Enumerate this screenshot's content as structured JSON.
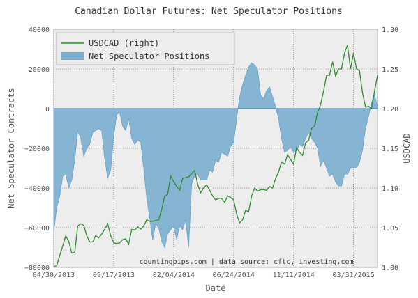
{
  "chart_data": {
    "type": "area+line",
    "title": "Canadian Dollar Futures: Net Speculator Positions",
    "xlabel": "Date",
    "ylabel_left": "Net Speculator Contracts",
    "ylabel_right": "USDCAD",
    "credit": "countingpips.com | data source: cftc, investing.com",
    "grid": true,
    "legend_position": "top-left",
    "x_range": [
      "2013-04-30",
      "2015-05-26"
    ],
    "x_ticks": [
      "04/30/2013",
      "09/17/2013",
      "02/04/2014",
      "06/24/2014",
      "11/11/2014",
      "03/31/2015"
    ],
    "y_left_range": [
      -80000,
      40000
    ],
    "y_left_ticks": [
      -80000,
      -60000,
      -40000,
      -20000,
      0,
      20000,
      40000
    ],
    "y_left_tick_labels": [
      "−80000",
      "−60000",
      "−40000",
      "−20000",
      "0",
      "20000",
      "40000"
    ],
    "y_right_range": [
      1.0,
      1.3
    ],
    "y_right_ticks": [
      1.0,
      1.05,
      1.1,
      1.15,
      1.2,
      1.25,
      1.3
    ],
    "y_right_tick_labels": [
      "1.00",
      "1.05",
      "1.10",
      "1.15",
      "1.20",
      "1.25",
      "1.30"
    ],
    "series": [
      {
        "name": "Net_Speculator_Positions",
        "kind": "area",
        "color": "#7aaed0",
        "points": [
          [
            "2013-04-30",
            -62000
          ],
          [
            "2013-05-07",
            -50000
          ],
          [
            "2013-05-14",
            -44000
          ],
          [
            "2013-05-21",
            -34000
          ],
          [
            "2013-05-28",
            -33000
          ],
          [
            "2013-06-04",
            -40000
          ],
          [
            "2013-06-11",
            -36000
          ],
          [
            "2013-06-18",
            -26000
          ],
          [
            "2013-06-25",
            -11000
          ],
          [
            "2013-07-02",
            -15000
          ],
          [
            "2013-07-09",
            -24000
          ],
          [
            "2013-07-16",
            -20000
          ],
          [
            "2013-07-23",
            -18000
          ],
          [
            "2013-07-30",
            -12000
          ],
          [
            "2013-08-06",
            -11000
          ],
          [
            "2013-08-13",
            -10000
          ],
          [
            "2013-08-20",
            -11000
          ],
          [
            "2013-08-27",
            -25000
          ],
          [
            "2013-09-03",
            -35000
          ],
          [
            "2013-09-10",
            -31000
          ],
          [
            "2013-09-17",
            -14000
          ],
          [
            "2013-09-24",
            -3000
          ],
          [
            "2013-10-01",
            -2000
          ],
          [
            "2013-10-08",
            -9000
          ],
          [
            "2013-10-15",
            -11000
          ],
          [
            "2013-10-22",
            -5000
          ],
          [
            "2013-10-29",
            -15000
          ],
          [
            "2013-11-05",
            -18000
          ],
          [
            "2013-11-12",
            -16000
          ],
          [
            "2013-11-19",
            -17000
          ],
          [
            "2013-11-26",
            -30000
          ],
          [
            "2013-12-03",
            -45000
          ],
          [
            "2013-12-10",
            -55000
          ],
          [
            "2013-12-17",
            -66000
          ],
          [
            "2013-12-24",
            -58000
          ],
          [
            "2013-12-31",
            -60000
          ],
          [
            "2014-01-07",
            -67000
          ],
          [
            "2014-01-14",
            -70000
          ],
          [
            "2014-01-21",
            -63000
          ],
          [
            "2014-01-28",
            -61000
          ],
          [
            "2014-02-04",
            -59000
          ],
          [
            "2014-02-11",
            -66000
          ],
          [
            "2014-02-18",
            -59000
          ],
          [
            "2014-02-25",
            -61000
          ],
          [
            "2014-03-04",
            -56000
          ],
          [
            "2014-03-11",
            -70000
          ],
          [
            "2014-03-18",
            -38000
          ],
          [
            "2014-03-25",
            -34000
          ],
          [
            "2014-04-01",
            -33000
          ],
          [
            "2014-04-08",
            -36000
          ],
          [
            "2014-04-15",
            -36000
          ],
          [
            "2014-04-22",
            -36000
          ],
          [
            "2014-04-29",
            -31000
          ],
          [
            "2014-05-06",
            -32000
          ],
          [
            "2014-05-13",
            -26000
          ],
          [
            "2014-05-20",
            -27000
          ],
          [
            "2014-05-27",
            -22000
          ],
          [
            "2014-06-03",
            -23000
          ],
          [
            "2014-06-10",
            -24000
          ],
          [
            "2014-06-17",
            -19000
          ],
          [
            "2014-06-24",
            -17000
          ],
          [
            "2014-07-01",
            -5000
          ],
          [
            "2014-07-08",
            6000
          ],
          [
            "2014-07-15",
            12000
          ],
          [
            "2014-07-22",
            17000
          ],
          [
            "2014-07-29",
            21000
          ],
          [
            "2014-08-05",
            23000
          ],
          [
            "2014-08-12",
            22000
          ],
          [
            "2014-08-19",
            20000
          ],
          [
            "2014-08-26",
            7000
          ],
          [
            "2014-09-02",
            5000
          ],
          [
            "2014-09-09",
            9000
          ],
          [
            "2014-09-16",
            11000
          ],
          [
            "2014-09-23",
            6000
          ],
          [
            "2014-09-30",
            1000
          ],
          [
            "2014-10-07",
            -5000
          ],
          [
            "2014-10-14",
            -15000
          ],
          [
            "2014-10-21",
            -22000
          ],
          [
            "2014-10-28",
            -21000
          ],
          [
            "2014-11-04",
            -19000
          ],
          [
            "2014-11-11",
            -22000
          ],
          [
            "2014-11-18",
            -21000
          ],
          [
            "2014-11-25",
            -18000
          ],
          [
            "2014-12-02",
            -19000
          ],
          [
            "2014-12-09",
            -15000
          ],
          [
            "2014-12-16",
            -12000
          ],
          [
            "2014-12-23",
            -15000
          ],
          [
            "2014-12-30",
            -17000
          ],
          [
            "2015-01-06",
            -20000
          ],
          [
            "2015-01-13",
            -29000
          ],
          [
            "2015-01-20",
            -26000
          ],
          [
            "2015-01-27",
            -30000
          ],
          [
            "2015-02-03",
            -34000
          ],
          [
            "2015-02-10",
            -33000
          ],
          [
            "2015-02-17",
            -37000
          ],
          [
            "2015-02-24",
            -39000
          ],
          [
            "2015-03-03",
            -39000
          ],
          [
            "2015-03-10",
            -33000
          ],
          [
            "2015-03-17",
            -33000
          ],
          [
            "2015-03-24",
            -30000
          ],
          [
            "2015-03-31",
            -30000
          ],
          [
            "2015-04-07",
            -30000
          ],
          [
            "2015-04-14",
            -27000
          ],
          [
            "2015-04-21",
            -21000
          ],
          [
            "2015-04-28",
            -10000
          ],
          [
            "2015-05-05",
            -4000
          ],
          [
            "2015-05-12",
            3000
          ],
          [
            "2015-05-19",
            7000
          ],
          [
            "2015-05-26",
            1000
          ]
        ]
      },
      {
        "name": "USDCAD (right)",
        "kind": "line",
        "color": "#2e8b2e",
        "points": [
          [
            "2013-04-30",
            1.001
          ],
          [
            "2013-05-07",
            1.002
          ],
          [
            "2013-05-14",
            1.015
          ],
          [
            "2013-05-21",
            1.027
          ],
          [
            "2013-05-28",
            1.04
          ],
          [
            "2013-06-04",
            1.033
          ],
          [
            "2013-06-11",
            1.018
          ],
          [
            "2013-06-18",
            1.019
          ],
          [
            "2013-06-25",
            1.052
          ],
          [
            "2013-07-02",
            1.055
          ],
          [
            "2013-07-09",
            1.053
          ],
          [
            "2013-07-16",
            1.04
          ],
          [
            "2013-07-23",
            1.032
          ],
          [
            "2013-07-30",
            1.032
          ],
          [
            "2013-08-06",
            1.04
          ],
          [
            "2013-08-13",
            1.037
          ],
          [
            "2013-08-20",
            1.042
          ],
          [
            "2013-08-27",
            1.048
          ],
          [
            "2013-09-03",
            1.055
          ],
          [
            "2013-09-10",
            1.04
          ],
          [
            "2013-09-17",
            1.031
          ],
          [
            "2013-09-24",
            1.03
          ],
          [
            "2013-10-01",
            1.031
          ],
          [
            "2013-10-08",
            1.035
          ],
          [
            "2013-10-15",
            1.036
          ],
          [
            "2013-10-22",
            1.029
          ],
          [
            "2013-10-29",
            1.048
          ],
          [
            "2013-11-05",
            1.047
          ],
          [
            "2013-11-12",
            1.051
          ],
          [
            "2013-11-19",
            1.048
          ],
          [
            "2013-11-26",
            1.052
          ],
          [
            "2013-12-03",
            1.06
          ],
          [
            "2013-12-10",
            1.058
          ],
          [
            "2013-12-17",
            1.058
          ],
          [
            "2013-12-24",
            1.059
          ],
          [
            "2013-12-31",
            1.06
          ],
          [
            "2014-01-07",
            1.073
          ],
          [
            "2014-01-14",
            1.09
          ],
          [
            "2014-01-21",
            1.092
          ],
          [
            "2014-01-28",
            1.115
          ],
          [
            "2014-02-04",
            1.108
          ],
          [
            "2014-02-11",
            1.102
          ],
          [
            "2014-02-18",
            1.097
          ],
          [
            "2014-02-25",
            1.112
          ],
          [
            "2014-03-04",
            1.113
          ],
          [
            "2014-03-11",
            1.114
          ],
          [
            "2014-03-18",
            1.118
          ],
          [
            "2014-03-25",
            1.122
          ],
          [
            "2014-04-01",
            1.105
          ],
          [
            "2014-04-08",
            1.094
          ],
          [
            "2014-04-15",
            1.1
          ],
          [
            "2014-04-22",
            1.104
          ],
          [
            "2014-04-29",
            1.097
          ],
          [
            "2014-05-06",
            1.09
          ],
          [
            "2014-05-13",
            1.085
          ],
          [
            "2014-05-20",
            1.087
          ],
          [
            "2014-05-27",
            1.087
          ],
          [
            "2014-06-03",
            1.082
          ],
          [
            "2014-06-10",
            1.09
          ],
          [
            "2014-06-17",
            1.088
          ],
          [
            "2014-06-24",
            1.085
          ],
          [
            "2014-07-01",
            1.067
          ],
          [
            "2014-07-08",
            1.056
          ],
          [
            "2014-07-15",
            1.06
          ],
          [
            "2014-07-22",
            1.072
          ],
          [
            "2014-07-29",
            1.07
          ],
          [
            "2014-08-05",
            1.09
          ],
          [
            "2014-08-12",
            1.1
          ],
          [
            "2014-08-19",
            1.096
          ],
          [
            "2014-08-26",
            1.098
          ],
          [
            "2014-09-02",
            1.098
          ],
          [
            "2014-09-09",
            1.097
          ],
          [
            "2014-09-16",
            1.102
          ],
          [
            "2014-09-23",
            1.1
          ],
          [
            "2014-09-30",
            1.112
          ],
          [
            "2014-10-07",
            1.12
          ],
          [
            "2014-10-14",
            1.133
          ],
          [
            "2014-10-21",
            1.13
          ],
          [
            "2014-10-28",
            1.142
          ],
          [
            "2014-11-04",
            1.136
          ],
          [
            "2014-11-11",
            1.13
          ],
          [
            "2014-11-18",
            1.151
          ],
          [
            "2014-11-25",
            1.145
          ],
          [
            "2014-12-02",
            1.141
          ],
          [
            "2014-12-09",
            1.157
          ],
          [
            "2014-12-16",
            1.16
          ],
          [
            "2014-12-23",
            1.175
          ],
          [
            "2014-12-30",
            1.178
          ],
          [
            "2015-01-06",
            1.195
          ],
          [
            "2015-01-13",
            1.205
          ],
          [
            "2015-01-20",
            1.222
          ],
          [
            "2015-01-27",
            1.242
          ],
          [
            "2015-02-03",
            1.242
          ],
          [
            "2015-02-10",
            1.259
          ],
          [
            "2015-02-17",
            1.241
          ],
          [
            "2015-02-24",
            1.25
          ],
          [
            "2015-03-03",
            1.25
          ],
          [
            "2015-03-10",
            1.27
          ],
          [
            "2015-03-17",
            1.28
          ],
          [
            "2015-03-24",
            1.25
          ],
          [
            "2015-03-31",
            1.27
          ],
          [
            "2015-04-07",
            1.25
          ],
          [
            "2015-04-14",
            1.248
          ],
          [
            "2015-04-21",
            1.22
          ],
          [
            "2015-04-28",
            1.202
          ],
          [
            "2015-05-05",
            1.203
          ],
          [
            "2015-05-12",
            1.2
          ],
          [
            "2015-05-19",
            1.222
          ],
          [
            "2015-05-26",
            1.242
          ],
          [
            "2015-06-02",
            1.241
          ]
        ]
      }
    ]
  }
}
